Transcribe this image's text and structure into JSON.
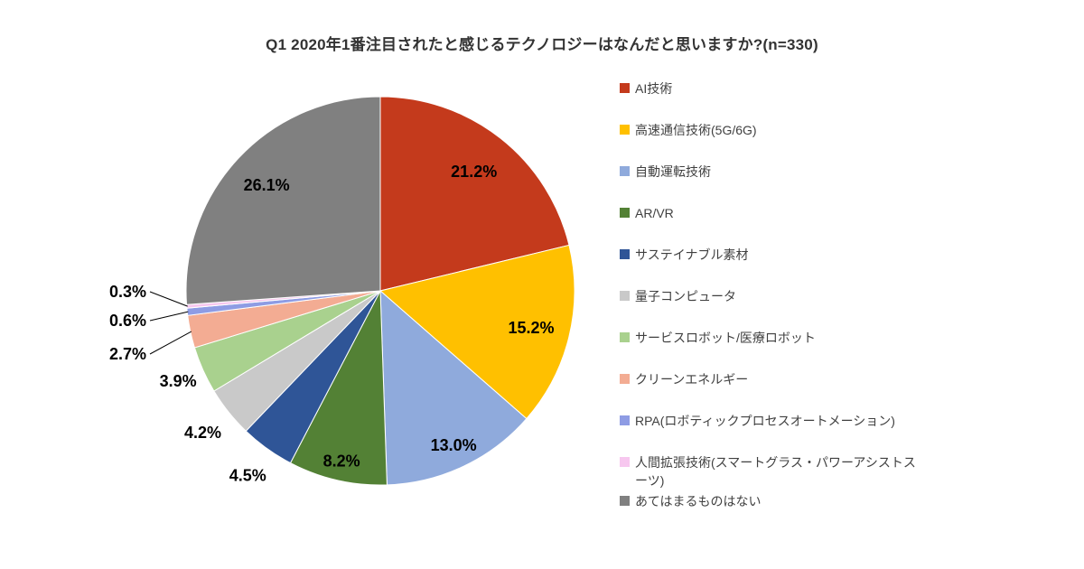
{
  "chart_data": {
    "type": "pie",
    "title": "Q1 2020年1番注目されたと感じるテクノロジーはなんだと思いますか?(n=330)",
    "n": 330,
    "labels": [
      "AI技術",
      "高速通信技術(5G/6G)",
      "自動運転技術",
      "AR/VR",
      "サステイナブル素材",
      "量子コンピュータ",
      "サービスロボット/医療ロボット",
      "クリーンエネルギー",
      "RPA(ロボティックプロセスオートメーション)",
      "人間拡張技術(スマートグラス・パワーアシストスーツ)",
      "あてはまるものはない"
    ],
    "values": [
      21.2,
      15.2,
      13.0,
      8.2,
      4.5,
      4.2,
      3.9,
      2.7,
      0.6,
      0.3,
      26.1
    ],
    "value_labels": [
      "21.2%",
      "15.2%",
      "13.0%",
      "8.2%",
      "4.5%",
      "4.2%",
      "3.9%",
      "2.7%",
      "0.6%",
      "0.3%",
      "26.1%"
    ],
    "colors": [
      "#C43A1C",
      "#FFC000",
      "#8FAADC",
      "#538135",
      "#2F5597",
      "#C9C9C9",
      "#A9D18E",
      "#F3AC93",
      "#8E9CE4",
      "#F7C7EF",
      "#808080"
    ],
    "legend_position": "right",
    "start_angle_deg": 0,
    "direction": "clockwise"
  }
}
